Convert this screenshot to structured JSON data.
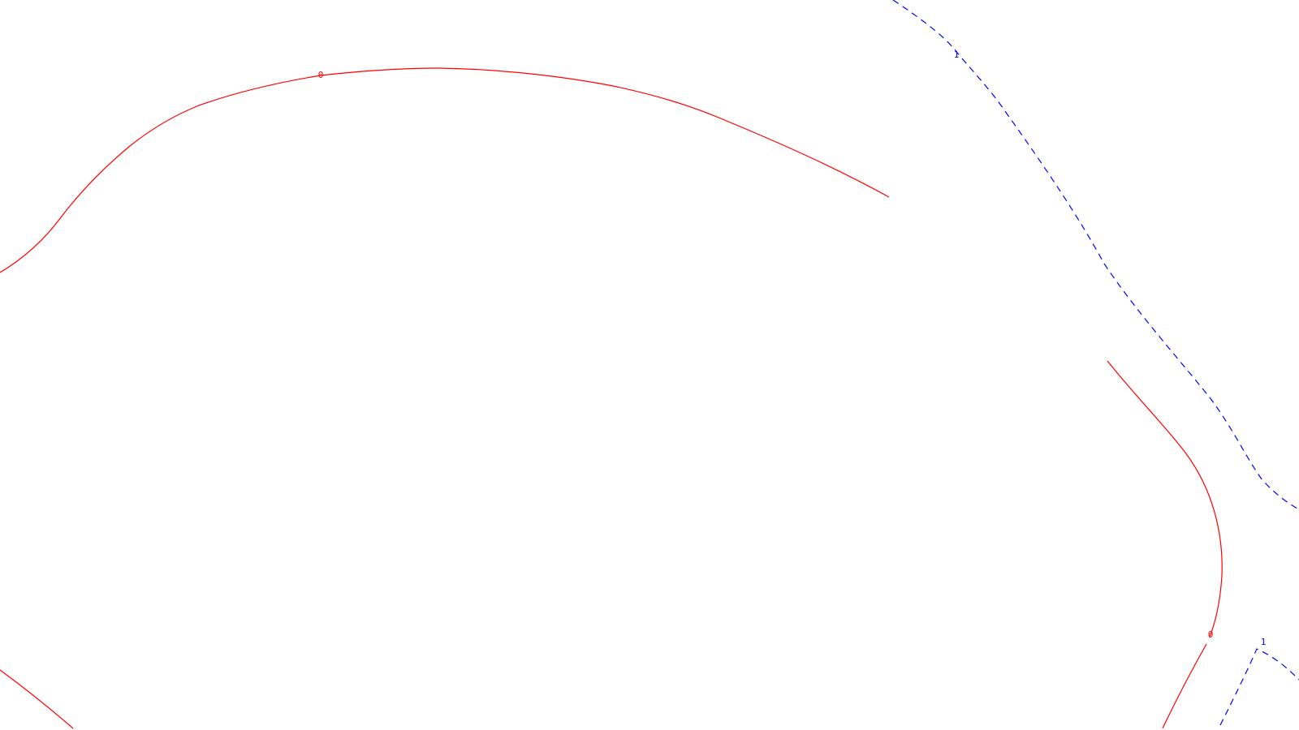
{
  "plot": {
    "background": "#ffffff",
    "contours": [
      {
        "level_label": "0",
        "color": "#ff0000",
        "style": "solid",
        "segments": 4
      },
      {
        "level_label": "1",
        "color": "#0000ff",
        "style": "dashed",
        "segments": 2
      }
    ]
  }
}
